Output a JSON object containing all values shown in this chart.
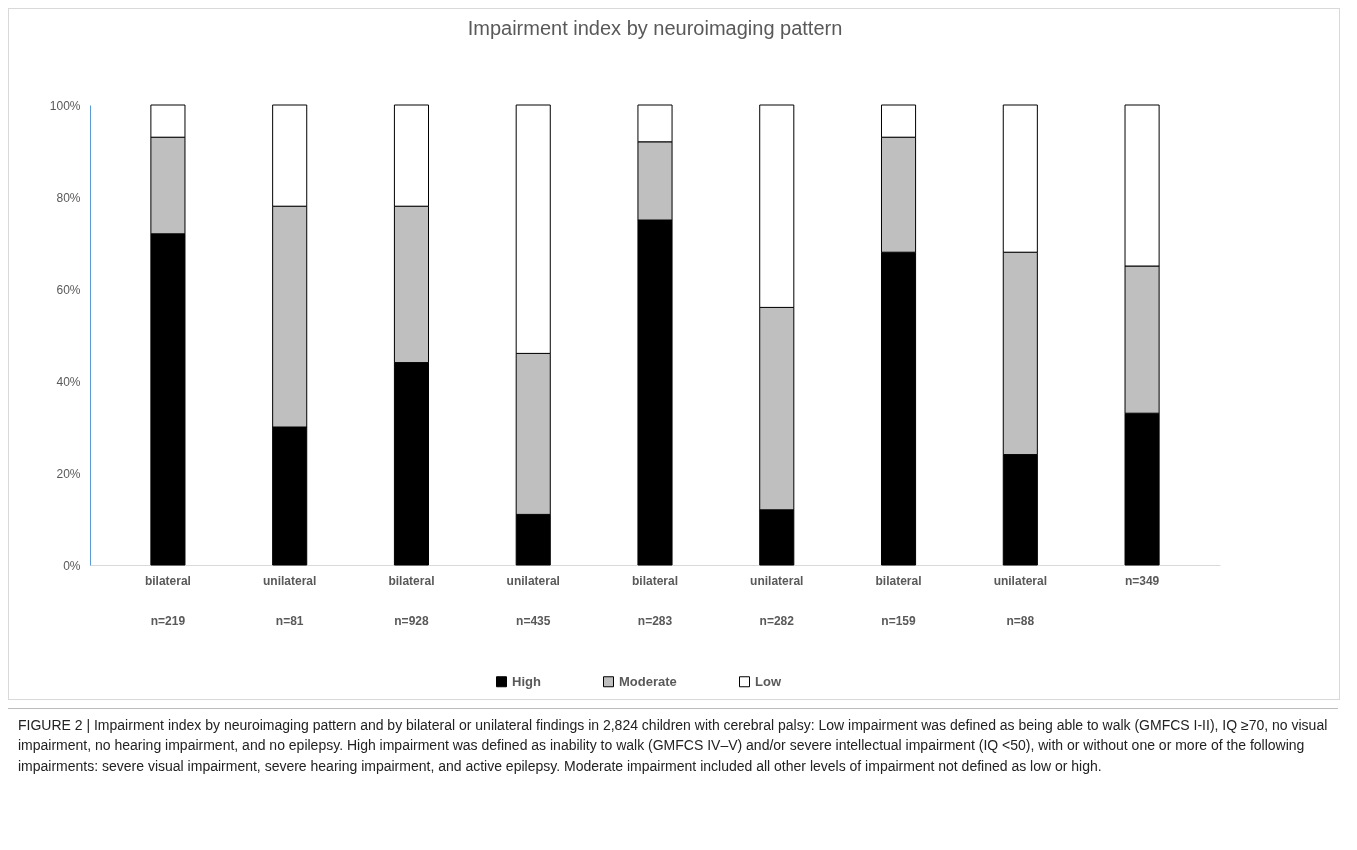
{
  "chart_data": {
    "type": "bar",
    "title": "Impairment index by neuroimaging pattern",
    "categories": [
      "bilateral\nn=219",
      "unilateral\nn=81",
      "bilateral\nn=928",
      "unilateral\nn=435",
      "bilateral\nn=283",
      "unilateral\nn=282",
      "bilateral\nn=159",
      "unilateral\nn=88",
      "n=349"
    ],
    "stacked": true,
    "series": [
      {
        "name": "High",
        "color": "#000000",
        "values": [
          72,
          30,
          44,
          11,
          75,
          12,
          68,
          24,
          33
        ]
      },
      {
        "name": "Moderate",
        "color": "#bfbfbf",
        "values": [
          21,
          48,
          34,
          35,
          17,
          44,
          25,
          44,
          32
        ]
      },
      {
        "name": "Low",
        "color": "#ffffff",
        "values": [
          7,
          22,
          22,
          54,
          8,
          44,
          7,
          32,
          35
        ]
      }
    ],
    "ylim": [
      0,
      100
    ],
    "yticks": [
      {
        "value": 0,
        "label": "0%"
      },
      {
        "value": 20,
        "label": "20%"
      },
      {
        "value": 40,
        "label": "40%"
      },
      {
        "value": 60,
        "label": "60%"
      },
      {
        "value": 80,
        "label": "80%"
      },
      {
        "value": 100,
        "label": "100%"
      }
    ],
    "grid": false,
    "legend": "bottom",
    "annotations": [
      "FIGURE 2 | Impairment index by neuroimaging pattern and by bilateral or unilateral findings in 2,824 children with cerebral palsy: Low impairment was defined as being able to walk (GMFCS I-II), IQ ≥70, no visual impairment, no hearing impairment, and no epilepsy. High impairment was defined as inability to walk (GMFCS IV–V) and/or severe intellectual impairment (IQ <50), with or without one or more of the following impairments: severe visual impairment, severe hearing impairment, and active epilepsy. Moderate impairment included all other levels of impairment not defined as low or high."
    ]
  }
}
